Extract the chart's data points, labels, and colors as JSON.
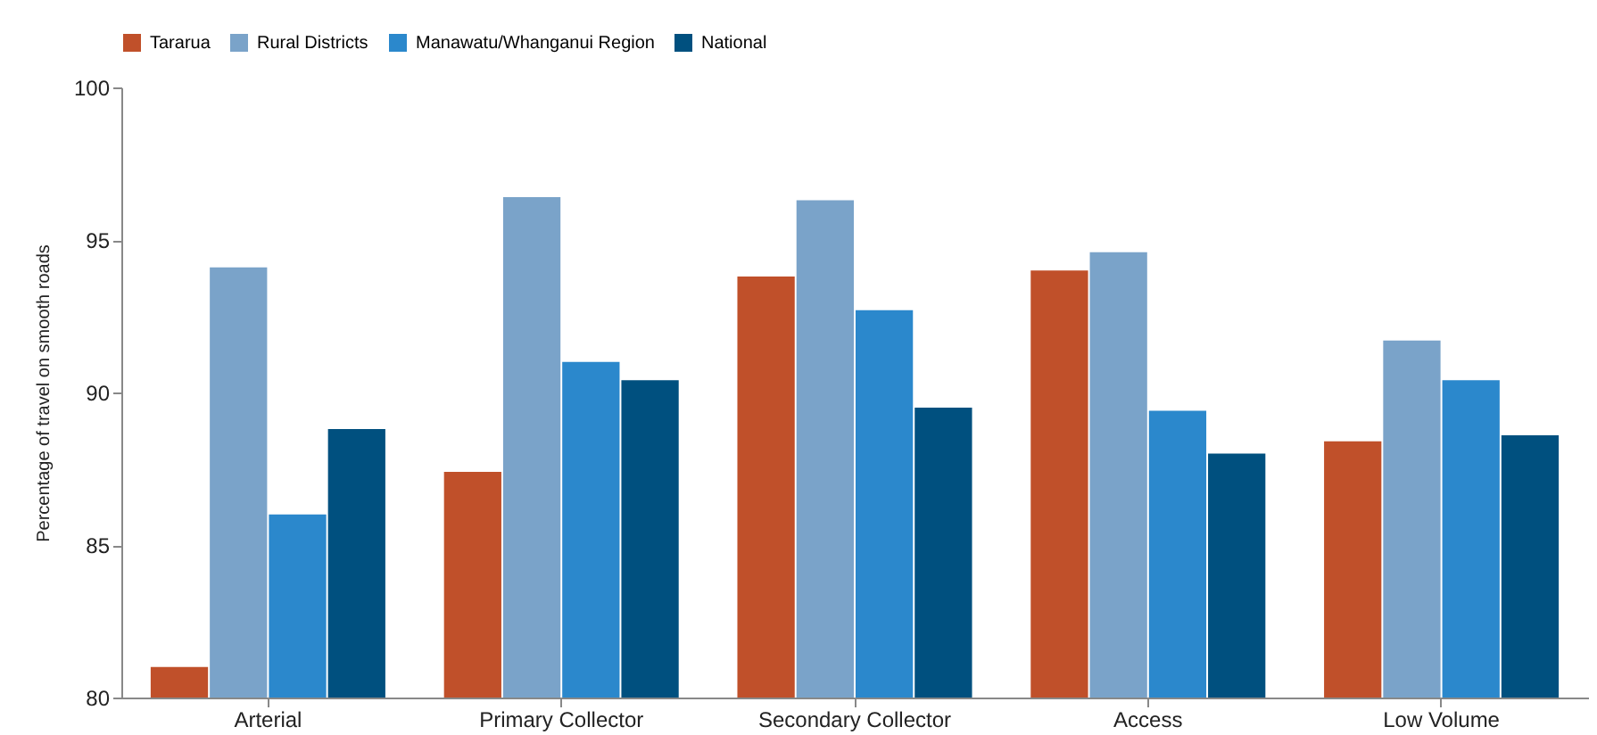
{
  "chart_data": {
    "type": "bar",
    "ylabel": "Percentage of travel on smooth roads",
    "categories": [
      "Arterial",
      "Primary Collector",
      "Secondary Collector",
      "Access",
      "Low Volume"
    ],
    "series": [
      {
        "name": "Tararua",
        "color": "#c0502a",
        "values": [
          81.0,
          87.4,
          93.8,
          94.0,
          88.4
        ]
      },
      {
        "name": "Rural Districts",
        "color": "#7aa3c9",
        "values": [
          94.1,
          96.4,
          96.3,
          94.6,
          91.7
        ]
      },
      {
        "name": "Manawatu/Whanganui Region",
        "color": "#2b88cc",
        "values": [
          86.0,
          91.0,
          92.7,
          89.4,
          90.4
        ]
      },
      {
        "name": "National",
        "color": "#00507f",
        "values": [
          88.8,
          90.4,
          89.5,
          88.0,
          88.6
        ]
      }
    ],
    "ylim": [
      80,
      100
    ],
    "yticks": [
      80,
      85,
      90,
      95,
      100
    ],
    "grid": false,
    "legend": "top"
  }
}
